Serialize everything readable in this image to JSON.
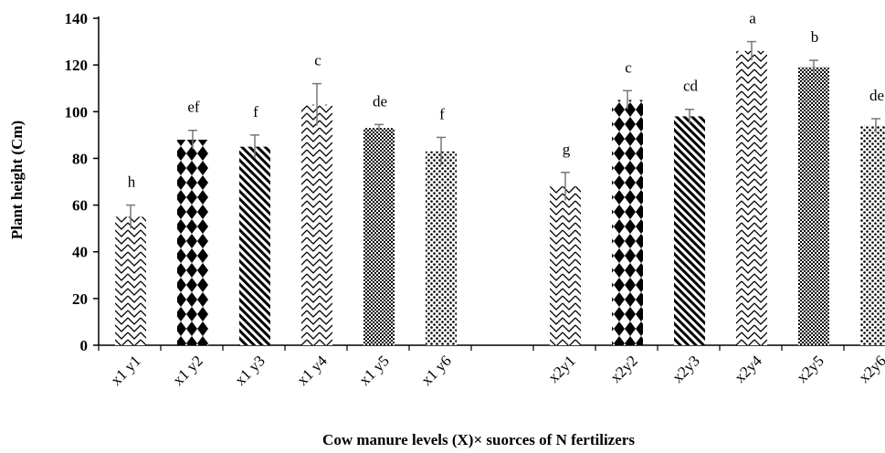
{
  "chart_data": {
    "type": "bar",
    "xlabel": "Cow manure levels (X)× suorces of N fertilizers",
    "ylabel": "Plant height (Cm)",
    "ylim": [
      0,
      140
    ],
    "yticks": [
      0,
      20,
      40,
      60,
      80,
      100,
      120,
      140
    ],
    "grid": false,
    "legend": "none",
    "groups": [
      {
        "bars": [
          {
            "category": "x1 y1",
            "value": 55,
            "error": 5,
            "letter": "h",
            "pattern": "zigzag"
          },
          {
            "category": "x1 y2",
            "value": 88,
            "error": 4,
            "letter": "ef",
            "pattern": "diamond"
          },
          {
            "category": "x1 y3",
            "value": 85,
            "error": 5,
            "letter": "f",
            "pattern": "diagonal"
          },
          {
            "category": "x1 y4",
            "value": 103,
            "error": 9,
            "letter": "c",
            "pattern": "zigzag"
          },
          {
            "category": "x1 y5",
            "value": 93,
            "error": 1.5,
            "letter": "de",
            "pattern": "checker"
          },
          {
            "category": "x1 y6",
            "value": 83,
            "error": 6,
            "letter": "f",
            "pattern": "dots"
          }
        ]
      },
      {
        "bars": [
          {
            "category": "x2y1",
            "value": 68,
            "error": 6,
            "letter": "g",
            "pattern": "zigzag"
          },
          {
            "category": "x2y2",
            "value": 105,
            "error": 4,
            "letter": "c",
            "pattern": "diamond"
          },
          {
            "category": "x2y3",
            "value": 98,
            "error": 3,
            "letter": "cd",
            "pattern": "diagonal"
          },
          {
            "category": "x2y4",
            "value": 126,
            "error": 4,
            "letter": "a",
            "pattern": "zigzag"
          },
          {
            "category": "x2y5",
            "value": 119,
            "error": 3,
            "letter": "b",
            "pattern": "checker"
          },
          {
            "category": "x2y6",
            "value": 94,
            "error": 3,
            "letter": "de",
            "pattern": "dots"
          }
        ]
      }
    ]
  }
}
